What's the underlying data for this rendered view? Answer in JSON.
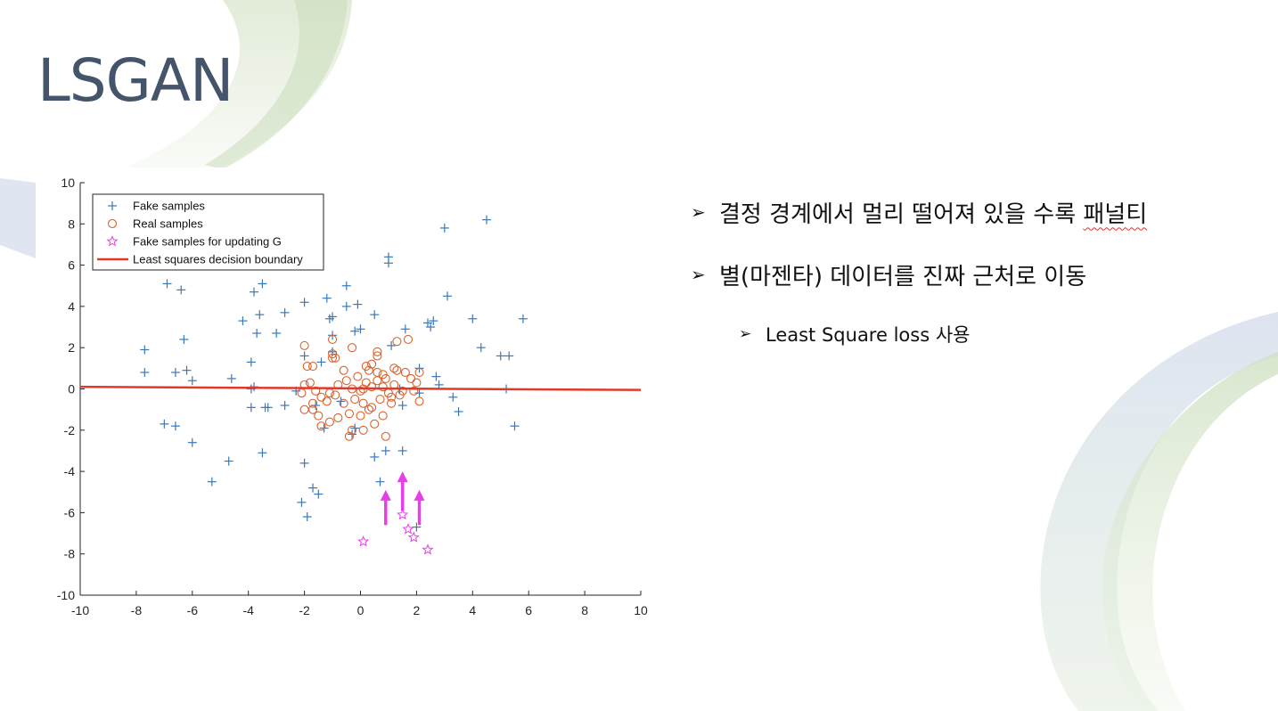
{
  "slide": {
    "title": "LSGAN",
    "bullets": [
      {
        "level": 1,
        "prefix": "결정 경계에서 멀리 떨어져 있을 수록 ",
        "flagged": "패널티"
      },
      {
        "level": 1,
        "prefix": "별(마젠타) 데이터를 진짜 근처로 이동",
        "flagged": ""
      },
      {
        "level": 2,
        "prefix": "Least Square loss 사용",
        "flagged": ""
      }
    ],
    "colors": {
      "title": "#44546a",
      "fake": "#3a78b8",
      "real": "#d9622b",
      "moved": "#e83ee8",
      "boundary": "#e03a2c"
    },
    "bullet_icon": "arrowhead-bullet-icon"
  },
  "chart_data": {
    "type": "scatter",
    "xlim": [
      -10,
      10
    ],
    "ylim": [
      -10,
      10
    ],
    "xticks": [
      -10,
      -8,
      -6,
      -4,
      -2,
      0,
      2,
      4,
      6,
      8,
      10
    ],
    "yticks": [
      -10,
      -8,
      -6,
      -4,
      -2,
      0,
      2,
      4,
      6,
      8,
      10
    ],
    "grid": false,
    "legend_position": "top-left",
    "legend": [
      {
        "label": "Fake samples",
        "marker": "plus"
      },
      {
        "label": "Real samples",
        "marker": "circle"
      },
      {
        "label": "Fake samples for updating G",
        "marker": "star"
      },
      {
        "label": "Least squares decision boundary",
        "marker": "line"
      }
    ],
    "fake": [
      [
        4.5,
        8.2
      ],
      [
        3,
        7.8
      ],
      [
        1,
        6.4
      ],
      [
        1,
        6.1
      ],
      [
        -6.9,
        5.1
      ],
      [
        -6.4,
        4.8
      ],
      [
        -3.5,
        5.1
      ],
      [
        -3.8,
        4.7
      ],
      [
        -0.5,
        5.0
      ],
      [
        3.1,
        4.5
      ],
      [
        -2,
        4.2
      ],
      [
        -1.2,
        4.4
      ],
      [
        -0.5,
        4.0
      ],
      [
        -0.1,
        4.1
      ],
      [
        -3.6,
        3.6
      ],
      [
        -2.7,
        3.7
      ],
      [
        -1,
        3.5
      ],
      [
        -1.1,
        3.4
      ],
      [
        0.5,
        3.6
      ],
      [
        -4.2,
        3.3
      ],
      [
        -3.7,
        2.7
      ],
      [
        -3,
        2.7
      ],
      [
        -1,
        2.6
      ],
      [
        -0.2,
        2.8
      ],
      [
        0,
        2.9
      ],
      [
        1.6,
        2.9
      ],
      [
        2.4,
        3.2
      ],
      [
        2.5,
        3.0
      ],
      [
        2.6,
        3.3
      ],
      [
        4,
        3.4
      ],
      [
        5.8,
        3.4
      ],
      [
        -6.3,
        2.4
      ],
      [
        -7.7,
        1.9
      ],
      [
        1.1,
        2.1
      ],
      [
        4.3,
        2.0
      ],
      [
        5,
        1.6
      ],
      [
        5.3,
        1.6
      ],
      [
        -7.7,
        0.8
      ],
      [
        -6.6,
        0.8
      ],
      [
        -6.2,
        0.9
      ],
      [
        -6,
        0.4
      ],
      [
        -4.6,
        0.5
      ],
      [
        -3.9,
        1.3
      ],
      [
        -2,
        1.6
      ],
      [
        -1.4,
        1.3
      ],
      [
        -1,
        1.8
      ],
      [
        2.1,
        1.0
      ],
      [
        2.7,
        0.6
      ],
      [
        2.8,
        0.2
      ],
      [
        -3.9,
        0.0
      ],
      [
        -3.8,
        0.1
      ],
      [
        -2.3,
        -0.1
      ],
      [
        1.4,
        0.0
      ],
      [
        2.1,
        -0.2
      ],
      [
        3.3,
        -0.4
      ],
      [
        5.2,
        0.0
      ],
      [
        -3.9,
        -0.9
      ],
      [
        -3.4,
        -0.9
      ],
      [
        -3.3,
        -0.9
      ],
      [
        -2.7,
        -0.8
      ],
      [
        -1.6,
        -0.8
      ],
      [
        -0.7,
        -0.6
      ],
      [
        1.5,
        -0.8
      ],
      [
        3.5,
        -1.1
      ],
      [
        -7.0,
        -1.7
      ],
      [
        -6.6,
        -1.8
      ],
      [
        -6.0,
        -2.6
      ],
      [
        -1.3,
        -1.9
      ],
      [
        -0.3,
        -2.2
      ],
      [
        -0.2,
        -1.9
      ],
      [
        5.5,
        -1.8
      ],
      [
        -3.5,
        -3.1
      ],
      [
        0.5,
        -3.3
      ],
      [
        0.9,
        -3.0
      ],
      [
        1.5,
        -3.0
      ],
      [
        -4.7,
        -3.5
      ],
      [
        -2.0,
        -3.6
      ],
      [
        -5.3,
        -4.5
      ],
      [
        0.7,
        -4.5
      ],
      [
        -1.7,
        -4.8
      ],
      [
        -1.5,
        -5.1
      ],
      [
        -2.1,
        -5.5
      ],
      [
        -1.9,
        -6.2
      ],
      [
        2.0,
        -6.7
      ]
    ],
    "real": [
      [
        -2,
        2.1
      ],
      [
        -1.0,
        2.4
      ],
      [
        -0.3,
        2.0
      ],
      [
        0.6,
        1.6
      ],
      [
        0.6,
        1.8
      ],
      [
        1.3,
        2.3
      ],
      [
        1.7,
        2.4
      ],
      [
        -1.9,
        1.1
      ],
      [
        -1.7,
        1.1
      ],
      [
        -1.0,
        1.7
      ],
      [
        -1.0,
        1.5
      ],
      [
        -0.9,
        1.5
      ],
      [
        0.2,
        1.1
      ],
      [
        0.3,
        0.9
      ],
      [
        0.6,
        0.8
      ],
      [
        0.8,
        0.7
      ],
      [
        1.2,
        1.0
      ],
      [
        1.3,
        0.9
      ],
      [
        1.6,
        0.8
      ],
      [
        2.1,
        0.8
      ],
      [
        -2.0,
        0.2
      ],
      [
        -1.8,
        0.3
      ],
      [
        -1.6,
        -0.1
      ],
      [
        -1.4,
        -0.4
      ],
      [
        -1.1,
        -0.2
      ],
      [
        -0.8,
        0.2
      ],
      [
        -0.5,
        0.4
      ],
      [
        -0.3,
        0.0
      ],
      [
        0.0,
        -0.1
      ],
      [
        0.2,
        0.3
      ],
      [
        0.4,
        0.1
      ],
      [
        0.6,
        0.4
      ],
      [
        0.8,
        0.1
      ],
      [
        1.0,
        -0.2
      ],
      [
        1.2,
        0.2
      ],
      [
        1.5,
        -0.1
      ],
      [
        1.8,
        0.5
      ],
      [
        2.0,
        0.3
      ],
      [
        2.1,
        -0.6
      ],
      [
        -2.1,
        -0.2
      ],
      [
        -1.7,
        -0.7
      ],
      [
        -1.2,
        -0.6
      ],
      [
        -0.9,
        -0.3
      ],
      [
        -0.6,
        -0.7
      ],
      [
        -0.2,
        -0.5
      ],
      [
        0.1,
        -0.7
      ],
      [
        0.4,
        -0.9
      ],
      [
        0.7,
        -0.5
      ],
      [
        1.1,
        -0.4
      ],
      [
        1.4,
        -0.3
      ],
      [
        1.9,
        -0.1
      ],
      [
        -2.0,
        -1.0
      ],
      [
        -1.7,
        -1.0
      ],
      [
        -1.5,
        -1.3
      ],
      [
        -1.1,
        -1.6
      ],
      [
        -0.8,
        -1.4
      ],
      [
        -0.4,
        -1.2
      ],
      [
        0.0,
        -1.3
      ],
      [
        0.3,
        -1.0
      ],
      [
        0.5,
        -1.7
      ],
      [
        0.8,
        -1.3
      ],
      [
        1.1,
        -0.7
      ],
      [
        -1.4,
        -1.8
      ],
      [
        -0.3,
        -2.0
      ],
      [
        -0.4,
        -2.3
      ],
      [
        0.1,
        -2.0
      ],
      [
        0.9,
        -2.3
      ],
      [
        -0.1,
        0.6
      ],
      [
        0.4,
        1.2
      ],
      [
        0.9,
        0.5
      ],
      [
        -0.6,
        0.9
      ],
      [
        0.1,
        0.0
      ]
    ],
    "moved": [
      [
        1.5,
        -6.1
      ],
      [
        1.7,
        -6.8
      ],
      [
        1.9,
        -7.2
      ],
      [
        0.1,
        -7.4
      ],
      [
        2.4,
        -7.8
      ]
    ],
    "boundary": [
      [
        -10,
        0.1
      ],
      [
        10,
        -0.05
      ]
    ],
    "arrows": [
      {
        "x": 0.9,
        "from": -6.6,
        "to": -4.9
      },
      {
        "x": 1.5,
        "from": -5.9,
        "to": -4.0
      },
      {
        "x": 2.1,
        "from": -6.6,
        "to": -4.9
      }
    ]
  }
}
